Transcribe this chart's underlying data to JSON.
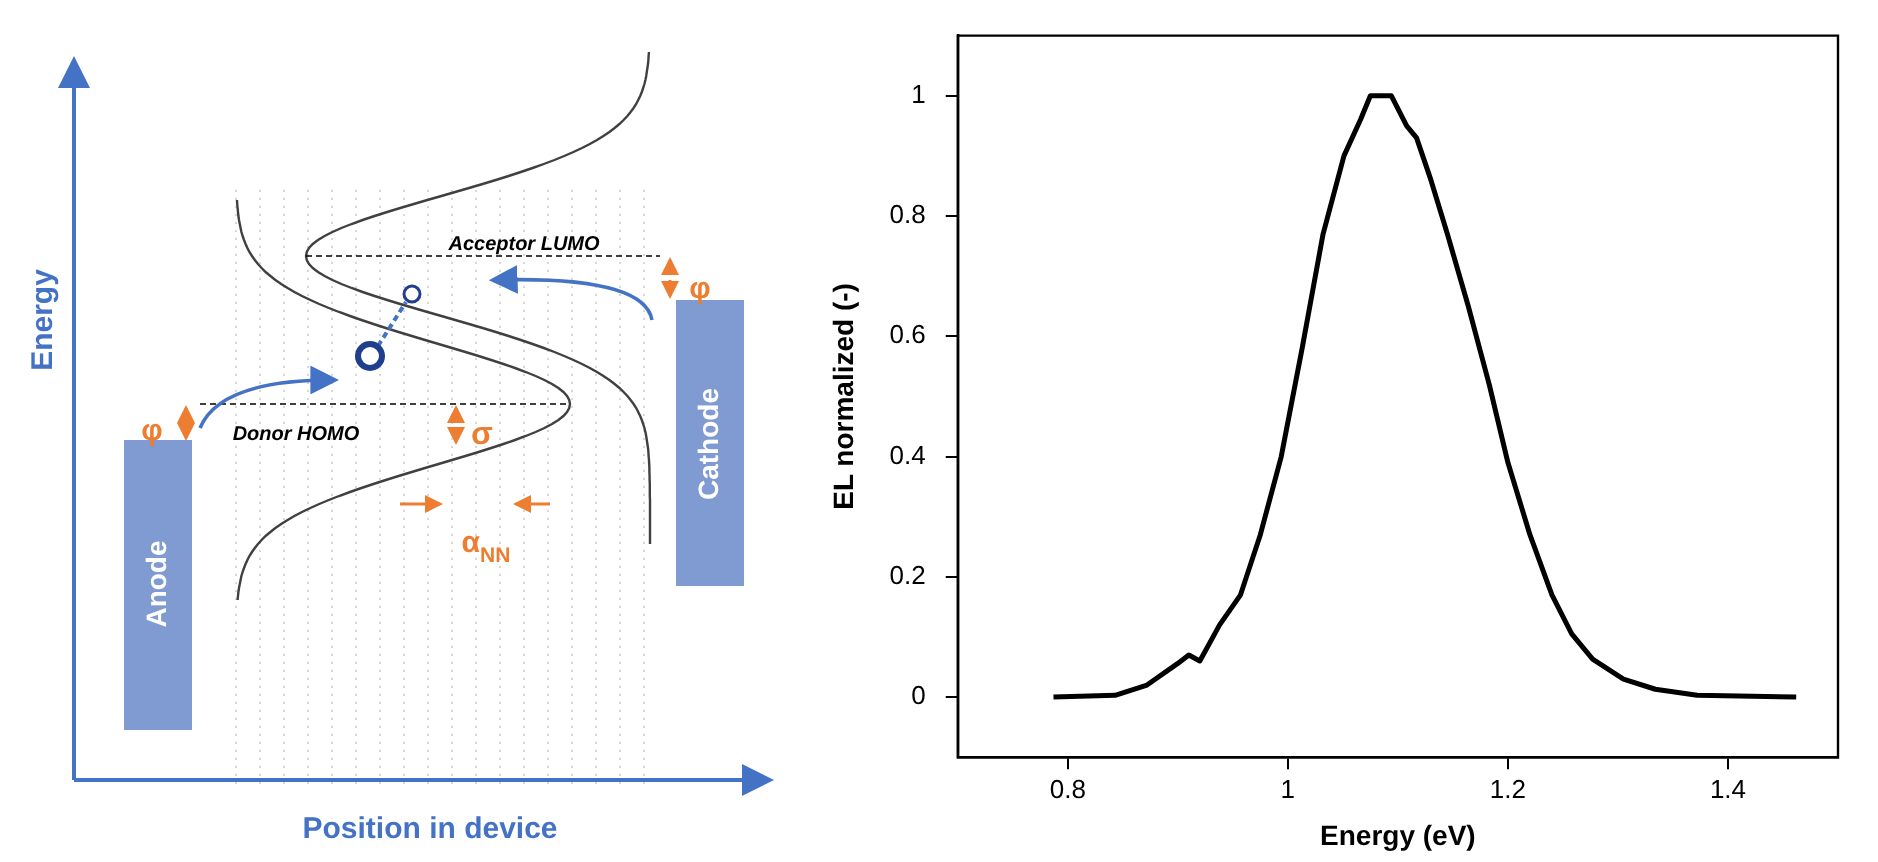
{
  "chart_data": [
    {
      "type": "other",
      "annotations": [
        "Energy",
        "Position in device",
        "Anode",
        "Cathode",
        "Acceptor LUMO",
        "Donor HOMO",
        "φ",
        "φ",
        "σ",
        "α$_{NN}$"
      ]
    },
    {
      "type": "line",
      "xlabel": "Energy (eV)",
      "ylabel": "EL normalized (-)",
      "x": [
        0.787,
        0.843,
        0.872,
        0.9,
        0.91,
        0.92,
        0.938,
        0.957,
        0.975,
        0.994,
        1.013,
        1.032,
        1.051,
        1.066,
        1.075,
        1.094,
        1.108,
        1.117,
        1.13,
        1.145,
        1.164,
        1.183,
        1.2,
        1.22,
        1.24,
        1.258,
        1.277,
        1.305,
        1.334,
        1.372,
        1.462
      ],
      "values": [
        0,
        0.003,
        0.02,
        0.056,
        0.07,
        0.06,
        0.12,
        0.17,
        0.27,
        0.4,
        0.58,
        0.77,
        0.9,
        0.96,
        1,
        1,
        0.95,
        0.93,
        0.86,
        0.77,
        0.65,
        0.52,
        0.39,
        0.27,
        0.17,
        0.105,
        0.063,
        0.03,
        0.013,
        0.003,
        0
      ],
      "color": "#000000",
      "xlim": [
        0.7,
        1.5
      ],
      "xticks": [
        0.8,
        1,
        1.2,
        1.4
      ],
      "ylim": [
        -0.1,
        1.1
      ],
      "yticks": [
        0,
        0.2,
        0.4,
        0.6,
        0.8,
        1
      ],
      "grid": false,
      "marker": "none",
      "legend": false
    }
  ]
}
